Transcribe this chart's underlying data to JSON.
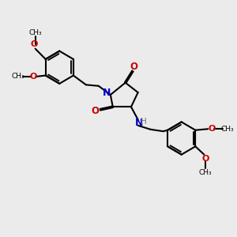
{
  "background_color": "#ebebeb",
  "line_color": "#000000",
  "N_color": "#0000cc",
  "O_color": "#cc0000",
  "H_color": "#707070",
  "line_width": 1.5,
  "dbo": 0.035,
  "xlim": [
    0,
    10
  ],
  "ylim": [
    0,
    10
  ]
}
